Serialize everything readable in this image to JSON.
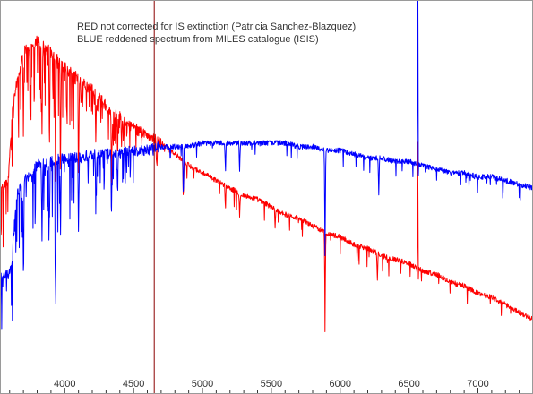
{
  "chart_data": {
    "type": "line",
    "title": "",
    "xlabel": "",
    "ylabel": "",
    "xlim": [
      3530,
      7400
    ],
    "ylim": [
      0,
      1.0
    ],
    "grid": false,
    "legend_placement": "top-center",
    "legend_lines": [
      "RED  not corrected for IS extinction (Patricia Sanchez-Blazquez)",
      "BLUE  reddened spectrum from MILES catalogue  (ISIS)"
    ],
    "x_ticks": [
      4000,
      4500,
      5000,
      5500,
      6000,
      6500,
      7000
    ],
    "marker_line": {
      "x": 4650,
      "color": "#8b0000"
    },
    "series": [
      {
        "color": "#ff0000",
        "continuum": [
          [
            3530,
            0.5
          ],
          [
            3590,
            0.52
          ],
          [
            3620,
            0.7
          ],
          [
            3660,
            0.8
          ],
          [
            3700,
            0.86
          ],
          [
            3760,
            0.88
          ],
          [
            3800,
            0.89
          ],
          [
            3900,
            0.86
          ],
          [
            4000,
            0.82
          ],
          [
            4100,
            0.79
          ],
          [
            4200,
            0.76
          ],
          [
            4300,
            0.72
          ],
          [
            4400,
            0.69
          ],
          [
            4500,
            0.66
          ],
          [
            4600,
            0.64
          ],
          [
            4700,
            0.62
          ],
          [
            4800,
            0.59
          ],
          [
            4900,
            0.56
          ],
          [
            5000,
            0.54
          ],
          [
            5100,
            0.52
          ],
          [
            5200,
            0.5
          ],
          [
            5300,
            0.48
          ],
          [
            5400,
            0.47
          ],
          [
            5500,
            0.45
          ],
          [
            5600,
            0.43
          ],
          [
            5700,
            0.42
          ],
          [
            5800,
            0.4
          ],
          [
            5900,
            0.38
          ],
          [
            6000,
            0.37
          ],
          [
            6100,
            0.35
          ],
          [
            6200,
            0.34
          ],
          [
            6300,
            0.32
          ],
          [
            6400,
            0.31
          ],
          [
            6500,
            0.3
          ],
          [
            6600,
            0.28
          ],
          [
            6700,
            0.27
          ],
          [
            6800,
            0.25
          ],
          [
            6900,
            0.24
          ],
          [
            7000,
            0.22
          ],
          [
            7100,
            0.21
          ],
          [
            7200,
            0.19
          ],
          [
            7300,
            0.17
          ],
          [
            7400,
            0.15
          ]
        ],
        "lines": [
          [
            3700,
            0.22
          ],
          [
            3750,
            0.2
          ],
          [
            3835,
            0.25
          ],
          [
            3889,
            0.28
          ],
          [
            3933,
            0.3
          ],
          [
            3970,
            0.26
          ],
          [
            4101,
            0.22
          ],
          [
            4226,
            0.12
          ],
          [
            4340,
            0.18
          ],
          [
            4383,
            0.1
          ],
          [
            4668,
            0.08
          ],
          [
            4861,
            0.1
          ],
          [
            5167,
            0.06
          ],
          [
            5270,
            0.06
          ],
          [
            5528,
            0.05
          ],
          [
            5890,
            0.22
          ],
          [
            6270,
            0.07
          ],
          [
            6563,
            0.1
          ]
        ],
        "emission": [
          [
            6563,
            0.48
          ]
        ]
      },
      {
        "color": "#0000ff",
        "continuum": [
          [
            3530,
            0.26
          ],
          [
            3590,
            0.27
          ],
          [
            3610,
            0.28
          ],
          [
            3630,
            0.38
          ],
          [
            3650,
            0.48
          ],
          [
            3700,
            0.52
          ],
          [
            3800,
            0.56
          ],
          [
            3900,
            0.57
          ],
          [
            4000,
            0.58
          ],
          [
            4100,
            0.58
          ],
          [
            4200,
            0.59
          ],
          [
            4300,
            0.59
          ],
          [
            4400,
            0.59
          ],
          [
            4500,
            0.6
          ],
          [
            4600,
            0.6
          ],
          [
            4700,
            0.61
          ],
          [
            4800,
            0.61
          ],
          [
            4900,
            0.61
          ],
          [
            5000,
            0.62
          ],
          [
            5100,
            0.62
          ],
          [
            5200,
            0.62
          ],
          [
            5300,
            0.62
          ],
          [
            5400,
            0.62
          ],
          [
            5500,
            0.62
          ],
          [
            5600,
            0.62
          ],
          [
            5700,
            0.61
          ],
          [
            5800,
            0.61
          ],
          [
            5900,
            0.6
          ],
          [
            6000,
            0.6
          ],
          [
            6100,
            0.59
          ],
          [
            6200,
            0.58
          ],
          [
            6300,
            0.58
          ],
          [
            6400,
            0.57
          ],
          [
            6500,
            0.57
          ],
          [
            6600,
            0.56
          ],
          [
            6700,
            0.55
          ],
          [
            6800,
            0.54
          ],
          [
            6900,
            0.54
          ],
          [
            7000,
            0.53
          ],
          [
            7100,
            0.53
          ],
          [
            7200,
            0.52
          ],
          [
            7300,
            0.51
          ],
          [
            7400,
            0.5
          ]
        ],
        "lines": [
          [
            3700,
            0.25
          ],
          [
            3835,
            0.2
          ],
          [
            3889,
            0.18
          ],
          [
            3933,
            0.34
          ],
          [
            3970,
            0.2
          ],
          [
            4101,
            0.15
          ],
          [
            4226,
            0.12
          ],
          [
            4340,
            0.14
          ],
          [
            4383,
            0.1
          ],
          [
            4861,
            0.14
          ],
          [
            5167,
            0.08
          ],
          [
            5270,
            0.07
          ],
          [
            5890,
            0.28
          ],
          [
            6280,
            0.1
          ],
          [
            6563,
            0.1
          ]
        ],
        "emission": [
          [
            6563,
            0.87
          ]
        ]
      }
    ]
  }
}
